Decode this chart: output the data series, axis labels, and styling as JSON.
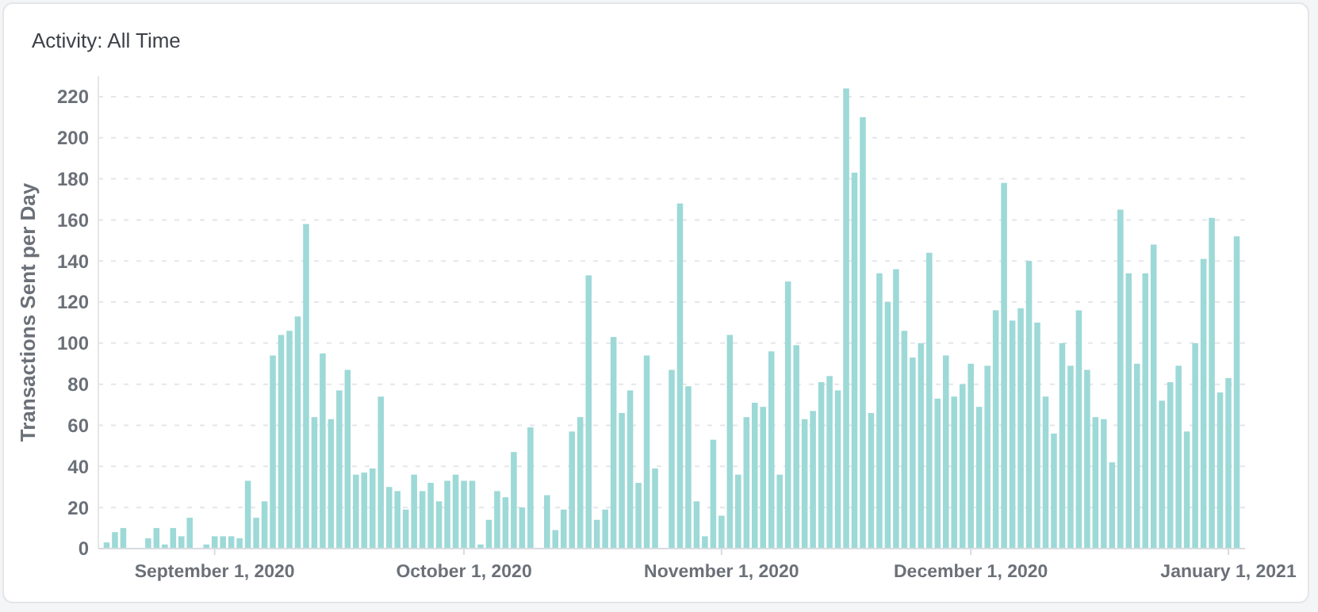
{
  "chart_data": {
    "type": "bar",
    "title": "Activity: All Time",
    "ylabel": "Transactions Sent per Day",
    "color": "#9dd9d7",
    "x": [
      "2020-08-19",
      "2020-08-20",
      "2020-08-21",
      "2020-08-22",
      "2020-08-23",
      "2020-08-24",
      "2020-08-25",
      "2020-08-26",
      "2020-08-27",
      "2020-08-28",
      "2020-08-29",
      "2020-08-30",
      "2020-08-31",
      "2020-09-01",
      "2020-09-02",
      "2020-09-03",
      "2020-09-04",
      "2020-09-05",
      "2020-09-06",
      "2020-09-07",
      "2020-09-08",
      "2020-09-09",
      "2020-09-10",
      "2020-09-11",
      "2020-09-12",
      "2020-09-13",
      "2020-09-14",
      "2020-09-15",
      "2020-09-16",
      "2020-09-17",
      "2020-09-18",
      "2020-09-19",
      "2020-09-20",
      "2020-09-21",
      "2020-09-22",
      "2020-09-23",
      "2020-09-24",
      "2020-09-25",
      "2020-09-26",
      "2020-09-27",
      "2020-09-28",
      "2020-09-29",
      "2020-09-30",
      "2020-10-01",
      "2020-10-02",
      "2020-10-03",
      "2020-10-04",
      "2020-10-05",
      "2020-10-06",
      "2020-10-07",
      "2020-10-08",
      "2020-10-09",
      "2020-10-10",
      "2020-10-11",
      "2020-10-12",
      "2020-10-13",
      "2020-10-14",
      "2020-10-15",
      "2020-10-16",
      "2020-10-17",
      "2020-10-18",
      "2020-10-19",
      "2020-10-20",
      "2020-10-21",
      "2020-10-22",
      "2020-10-23",
      "2020-10-24",
      "2020-10-25",
      "2020-10-26",
      "2020-10-27",
      "2020-10-28",
      "2020-10-29",
      "2020-10-30",
      "2020-10-31",
      "2020-11-01",
      "2020-11-02",
      "2020-11-03",
      "2020-11-04",
      "2020-11-05",
      "2020-11-06",
      "2020-11-07",
      "2020-11-08",
      "2020-11-09",
      "2020-11-10",
      "2020-11-11",
      "2020-11-12",
      "2020-11-13",
      "2020-11-14",
      "2020-11-15",
      "2020-11-16",
      "2020-11-17",
      "2020-11-18",
      "2020-11-19",
      "2020-11-20",
      "2020-11-21",
      "2020-11-22",
      "2020-11-23",
      "2020-11-24",
      "2020-11-25",
      "2020-11-26",
      "2020-11-27",
      "2020-11-28",
      "2020-11-29",
      "2020-11-30",
      "2020-12-01",
      "2020-12-02",
      "2020-12-03",
      "2020-12-04",
      "2020-12-05",
      "2020-12-06",
      "2020-12-07",
      "2020-12-08",
      "2020-12-09",
      "2020-12-10",
      "2020-12-11",
      "2020-12-12",
      "2020-12-13",
      "2020-12-14",
      "2020-12-15",
      "2020-12-16",
      "2020-12-17",
      "2020-12-18",
      "2020-12-19",
      "2020-12-20",
      "2020-12-21",
      "2020-12-22",
      "2020-12-23",
      "2020-12-24",
      "2020-12-25",
      "2020-12-26",
      "2020-12-27",
      "2020-12-28",
      "2020-12-29",
      "2020-12-30",
      "2020-12-31",
      "2021-01-01",
      "2021-01-02"
    ],
    "values": [
      3,
      8,
      10,
      0,
      0,
      5,
      10,
      2,
      10,
      6,
      15,
      0,
      2,
      6,
      6,
      6,
      5,
      33,
      15,
      23,
      94,
      104,
      106,
      113,
      158,
      64,
      95,
      63,
      77,
      87,
      36,
      37,
      39,
      74,
      30,
      28,
      19,
      36,
      28,
      32,
      23,
      33,
      36,
      33,
      33,
      2,
      14,
      28,
      25,
      47,
      20,
      59,
      0,
      26,
      9,
      19,
      57,
      64,
      133,
      14,
      19,
      103,
      66,
      77,
      32,
      94,
      39,
      0,
      87,
      168,
      79,
      23,
      6,
      53,
      16,
      104,
      36,
      64,
      71,
      69,
      96,
      36,
      130,
      99,
      63,
      67,
      81,
      84,
      77,
      224,
      183,
      210,
      66,
      134,
      120,
      136,
      106,
      93,
      100,
      144,
      73,
      94,
      74,
      80,
      90,
      69,
      89,
      116,
      178,
      111,
      117,
      140,
      110,
      74,
      56,
      100,
      89,
      116,
      87,
      64,
      63,
      42,
      165,
      134,
      90,
      134,
      148,
      72,
      81,
      89,
      57,
      100,
      141,
      161,
      76,
      83,
      152
    ],
    "xlim": [
      "2020-08-18",
      "2021-01-03"
    ],
    "xticks": [
      {
        "value": "2020-09-01",
        "label": "September 1, 2020"
      },
      {
        "value": "2020-10-01",
        "label": "October 1, 2020"
      },
      {
        "value": "2020-11-01",
        "label": "November 1, 2020"
      },
      {
        "value": "2020-12-01",
        "label": "December 1, 2020"
      },
      {
        "value": "2021-01-01",
        "label": "January 1, 2021"
      }
    ],
    "ylim": [
      0,
      230
    ],
    "yticks": [
      0,
      20,
      40,
      60,
      80,
      100,
      120,
      140,
      160,
      180,
      200,
      220
    ],
    "grid": "y"
  }
}
